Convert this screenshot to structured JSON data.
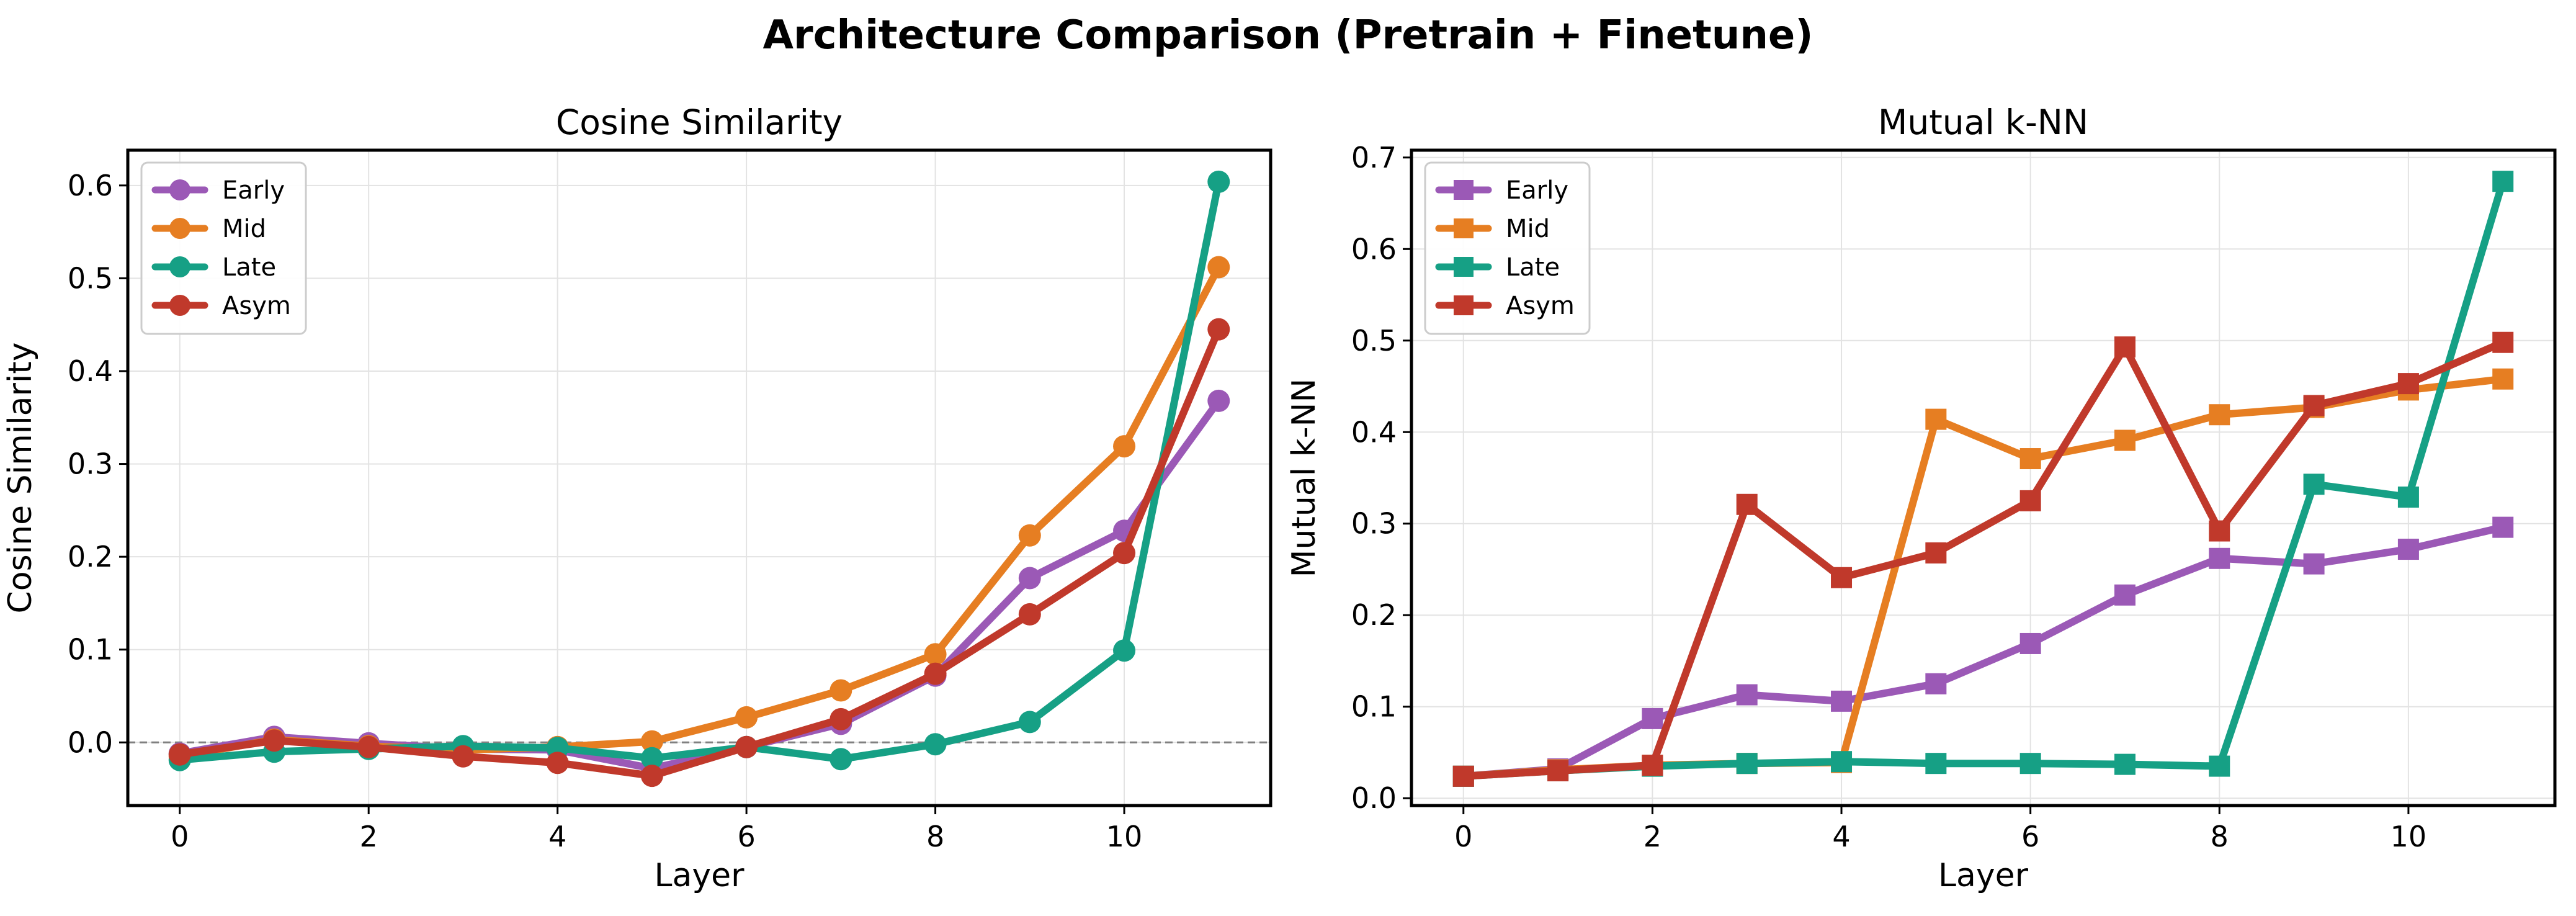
{
  "figure": {
    "title": "Architecture Comparison (Pretrain + Finetune)"
  },
  "colors": {
    "Early": "#9b59b6",
    "Mid": "#e67e22",
    "Late": "#16a085",
    "Asym": "#c0392b",
    "grid": "#e3e3e3",
    "zero_line": "#808080"
  },
  "chart_data": [
    {
      "type": "line",
      "title": "Cosine Similarity",
      "xlabel": "Layer",
      "ylabel": "Cosine Similarity",
      "marker": "circle",
      "xlim": [
        -0.55,
        11.55
      ],
      "ylim": [
        -0.068,
        0.638
      ],
      "xticks": [
        0,
        2,
        4,
        6,
        8,
        10
      ],
      "yticks": [
        0.0,
        0.1,
        0.2,
        0.3,
        0.4,
        0.5,
        0.6
      ],
      "ytick_labels": [
        "0.0",
        "0.1",
        "0.2",
        "0.3",
        "0.4",
        "0.5",
        "0.6"
      ],
      "grid": true,
      "legend_position": "top-left",
      "reference_line": {
        "y": 0.0,
        "style": "dashed"
      },
      "x": [
        0,
        1,
        2,
        3,
        4,
        5,
        6,
        7,
        8,
        9,
        10,
        11
      ],
      "series": [
        {
          "name": "Early",
          "values": [
            -0.012,
            0.006,
            -0.001,
            -0.007,
            -0.008,
            -0.028,
            -0.005,
            0.02,
            0.072,
            0.177,
            0.228,
            0.368
          ]
        },
        {
          "name": "Mid",
          "values": [
            -0.015,
            0.003,
            -0.004,
            -0.008,
            -0.005,
            0.001,
            0.027,
            0.056,
            0.095,
            0.223,
            0.319,
            0.512
          ]
        },
        {
          "name": "Late",
          "values": [
            -0.019,
            -0.01,
            -0.007,
            -0.004,
            -0.006,
            -0.017,
            -0.005,
            -0.018,
            -0.002,
            0.022,
            0.099,
            0.604
          ]
        },
        {
          "name": "Asym",
          "values": [
            -0.013,
            0.002,
            -0.005,
            -0.015,
            -0.022,
            -0.036,
            -0.005,
            0.025,
            0.074,
            0.138,
            0.204,
            0.445
          ]
        }
      ]
    },
    {
      "type": "line",
      "title": "Mutual k-NN",
      "xlabel": "Layer",
      "ylabel": "Mutual k-NN",
      "marker": "square",
      "xlim": [
        -0.55,
        11.55
      ],
      "ylim": [
        -0.008,
        0.708
      ],
      "xticks": [
        0,
        2,
        4,
        6,
        8,
        10
      ],
      "yticks": [
        0.0,
        0.1,
        0.2,
        0.3,
        0.4,
        0.5,
        0.6,
        0.7
      ],
      "ytick_labels": [
        "0.0",
        "0.1",
        "0.2",
        "0.3",
        "0.4",
        "0.5",
        "0.6",
        "0.7"
      ],
      "grid": true,
      "legend_position": "top-left",
      "x": [
        0,
        1,
        2,
        3,
        4,
        5,
        6,
        7,
        8,
        9,
        10,
        11
      ],
      "series": [
        {
          "name": "Early",
          "values": [
            0.024,
            0.032,
            0.087,
            0.113,
            0.106,
            0.125,
            0.169,
            0.222,
            0.262,
            0.256,
            0.272,
            0.296
          ]
        },
        {
          "name": "Mid",
          "values": [
            0.024,
            0.031,
            0.036,
            0.038,
            0.039,
            0.414,
            0.371,
            0.391,
            0.419,
            0.427,
            0.446,
            0.458
          ]
        },
        {
          "name": "Late",
          "values": [
            0.024,
            0.03,
            0.035,
            0.038,
            0.04,
            0.038,
            0.038,
            0.037,
            0.035,
            0.343,
            0.329,
            0.674
          ]
        },
        {
          "name": "Asym",
          "values": [
            0.024,
            0.03,
            0.036,
            0.321,
            0.241,
            0.268,
            0.325,
            0.493,
            0.292,
            0.429,
            0.453,
            0.498
          ]
        }
      ]
    }
  ]
}
